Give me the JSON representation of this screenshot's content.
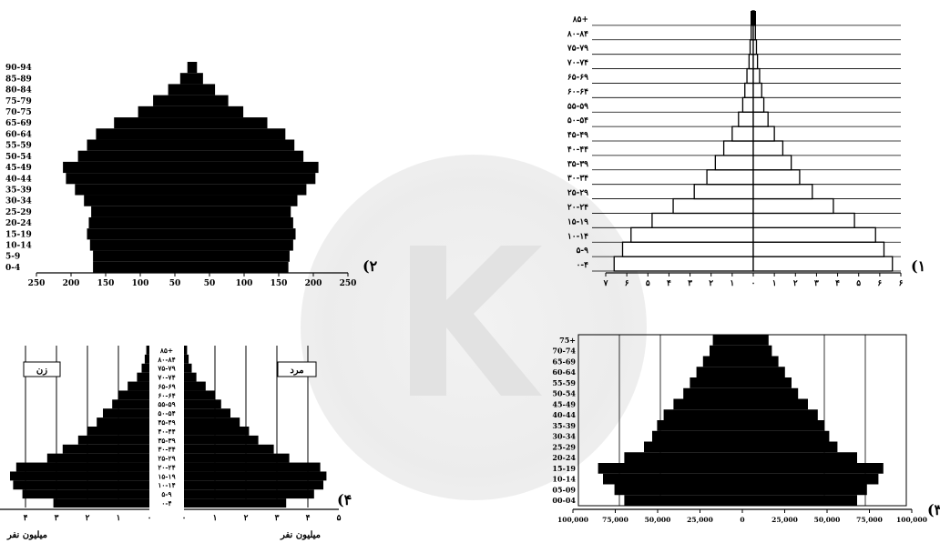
{
  "chart_data": [
    {
      "id": "p1",
      "type": "bar",
      "orientation": "horizontal-pyramid",
      "panel_number": "(۱",
      "categories": [
        "۰-۴",
        "۵-۹",
        "۱۰-۱۴",
        "۱۵-۱۹",
        "۲۰-۲۴",
        "۲۵-۲۹",
        "۳۰-۳۴",
        "۳۵-۳۹",
        "۴۰-۴۴",
        "۴۵-۴۹",
        "۵۰-۵۴",
        "۵۵-۵۹",
        "۶۰-۶۴",
        "۶۵-۶۹",
        "۷۰-۷۴",
        "۷۵-۷۹",
        "۸۰-۸۴",
        "۸۵+"
      ],
      "series": [
        {
          "side": "left",
          "values": [
            6.6,
            6.2,
            5.8,
            4.8,
            3.8,
            2.8,
            2.2,
            1.8,
            1.4,
            1.0,
            0.7,
            0.5,
            0.4,
            0.3,
            0.2,
            0.15,
            0.1,
            0.05
          ]
        },
        {
          "side": "right",
          "values": [
            6.6,
            6.2,
            5.8,
            4.8,
            3.8,
            2.8,
            2.2,
            1.8,
            1.4,
            1.0,
            0.7,
            0.5,
            0.4,
            0.3,
            0.2,
            0.15,
            0.1,
            0.05
          ]
        }
      ],
      "xticks": [
        "۷",
        "۶",
        "۵",
        "۴",
        "۳",
        "۲",
        "۱",
        "۰",
        "۱",
        "۲",
        "۳",
        "۴",
        "۵",
        "۶",
        "۶"
      ],
      "xlim": [
        -7,
        7
      ]
    },
    {
      "id": "p2",
      "type": "bar",
      "orientation": "horizontal-pyramid",
      "panel_number": "(۲",
      "categories": [
        "0-4",
        "5-9",
        "10-14",
        "15-19",
        "20-24",
        "25-29",
        "30-34",
        "35-39",
        "40-44",
        "45-49",
        "50-54",
        "55-59",
        "60-64",
        "65-69",
        "70-75",
        "75-79",
        "80-84",
        "85-89",
        "90-94"
      ],
      "series": [
        {
          "side": "left",
          "values": [
            165,
            165,
            170,
            175,
            172,
            168,
            180,
            195,
            210,
            215,
            190,
            175,
            160,
            130,
            90,
            65,
            40,
            20,
            8
          ]
        },
        {
          "side": "right",
          "values": [
            160,
            162,
            168,
            172,
            168,
            164,
            175,
            190,
            205,
            210,
            185,
            170,
            155,
            125,
            85,
            60,
            38,
            18,
            8
          ]
        }
      ],
      "xticks": [
        "250",
        "200",
        "150",
        "100",
        "50",
        "50",
        "100",
        "150",
        "200",
        "250"
      ],
      "xlim": [
        -250,
        250
      ]
    },
    {
      "id": "p3",
      "type": "bar",
      "orientation": "horizontal-pyramid",
      "panel_number": "(۳",
      "categories": [
        "00-04",
        "05-09",
        "10-14",
        "15-19",
        "20-24",
        "25-29",
        "30-34",
        "35-39",
        "40-44",
        "45-49",
        "50-54",
        "55-59",
        "60-64",
        "65-69",
        "70-74",
        "75+"
      ],
      "series": [
        {
          "side": "left",
          "values": [
            72000,
            78000,
            85000,
            88000,
            72000,
            60000,
            55000,
            52000,
            48000,
            42000,
            36000,
            32000,
            28000,
            24000,
            20000,
            18000
          ]
        },
        {
          "side": "right",
          "values": [
            70000,
            76000,
            83000,
            86000,
            70000,
            58000,
            53000,
            50000,
            46000,
            40000,
            34000,
            30000,
            26000,
            22000,
            18000,
            16000
          ]
        }
      ],
      "xticks": [
        "100,000",
        "75,000",
        "50,000",
        "25,000",
        "0",
        "25,000",
        "50,000",
        "75,000",
        "100,000"
      ],
      "xlim": [
        -100000,
        100000
      ]
    },
    {
      "id": "p4",
      "type": "bar",
      "orientation": "horizontal-pyramid",
      "panel_number": "(۴",
      "categories": [
        "۰-۴",
        "۵-۹",
        "۱۰-۱۴",
        "۱۵-۱۹",
        "۲۰-۲۴",
        "۲۵-۲۹",
        "۳۰-۳۴",
        "۳۵-۳۹",
        "۴۰-۴۴",
        "۴۵-۴۹",
        "۵۰-۵۴",
        "۵۵-۵۹",
        "۶۰-۶۴",
        "۶۵-۶۹",
        "۷۰-۷۴",
        "۷۵-۷۹",
        "۸۰-۸۴",
        "۸۵+"
      ],
      "series": [
        {
          "name": "زن",
          "side": "left",
          "values": [
            3.1,
            4.1,
            4.4,
            4.5,
            4.3,
            3.3,
            2.8,
            2.3,
            2.0,
            1.7,
            1.5,
            1.2,
            1.0,
            0.7,
            0.4,
            0.25,
            0.15,
            0.1
          ]
        },
        {
          "name": "مرد",
          "side": "right",
          "values": [
            3.3,
            4.2,
            4.5,
            4.6,
            4.4,
            3.4,
            2.9,
            2.4,
            2.1,
            1.8,
            1.5,
            1.2,
            1.0,
            0.7,
            0.4,
            0.25,
            0.15,
            0.1
          ]
        }
      ],
      "xticks_left": [
        "۴",
        "۳",
        "۲",
        "۱",
        "۰"
      ],
      "xticks_right": [
        "۰",
        "۱",
        "۲",
        "۳",
        "۴",
        "۵"
      ],
      "xlabel": "میلیون نفر",
      "xlim": [
        -5,
        5
      ]
    }
  ]
}
